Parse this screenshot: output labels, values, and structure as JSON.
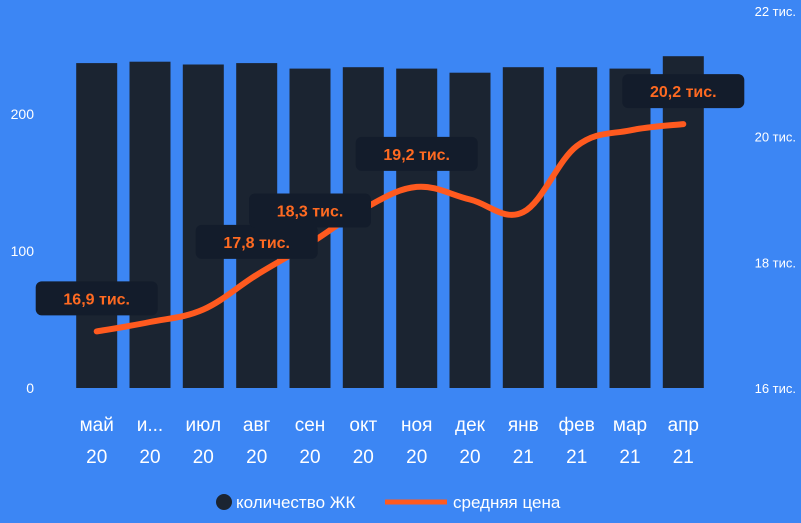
{
  "colors": {
    "background": "#3c86f4",
    "bar": "#1b2431",
    "line": "#ff5a1f",
    "label_text": "#ff6a21",
    "label_box": "#131c2b",
    "axis_text": "#ffffff"
  },
  "chart_data": {
    "type": "bar+line",
    "categories": [
      {
        "month": "май",
        "year": "20"
      },
      {
        "month": "и...",
        "year": "20"
      },
      {
        "month": "июл",
        "year": "20"
      },
      {
        "month": "авг",
        "year": "20"
      },
      {
        "month": "сен",
        "year": "20"
      },
      {
        "month": "окт",
        "year": "20"
      },
      {
        "month": "ноя",
        "year": "20"
      },
      {
        "month": "дек",
        "year": "20"
      },
      {
        "month": "янв",
        "year": "21"
      },
      {
        "month": "фев",
        "year": "21"
      },
      {
        "month": "мар",
        "year": "21"
      },
      {
        "month": "апр",
        "year": "21"
      }
    ],
    "series": [
      {
        "name": "количество ЖК",
        "type": "bar",
        "axis": "left",
        "values": [
          237,
          238,
          236,
          237,
          233,
          234,
          233,
          230,
          234,
          234,
          233,
          242
        ]
      },
      {
        "name": "средняя цена",
        "type": "line",
        "axis": "right",
        "values": [
          16900,
          17050,
          17250,
          17800,
          18300,
          18850,
          19200,
          19000,
          18800,
          19850,
          20100,
          20200
        ],
        "data_labels": [
          {
            "index": 0,
            "text": "16,9 тис."
          },
          {
            "index": 3,
            "text": "17,8 тис."
          },
          {
            "index": 4,
            "text": "18,3 тис."
          },
          {
            "index": 6,
            "text": "19,2 тис."
          },
          {
            "index": 11,
            "text": "20,2 тис."
          }
        ]
      }
    ],
    "left_axis": {
      "ylim": [
        0,
        275
      ],
      "ticks": [
        {
          "value": 0,
          "label": "0"
        },
        {
          "value": 100,
          "label": "100"
        },
        {
          "value": 200,
          "label": "200"
        }
      ]
    },
    "right_axis": {
      "ylim": [
        16000,
        22000
      ],
      "ticks": [
        {
          "value": 16000,
          "label": "16 тис."
        },
        {
          "value": 18000,
          "label": "18 тис."
        },
        {
          "value": 20000,
          "label": "20 тис."
        },
        {
          "value": 22000,
          "label": "22 тис."
        }
      ]
    },
    "grid": false,
    "legend": {
      "position": "bottom",
      "items": [
        {
          "label": "количество ЖК",
          "marker": "circle"
        },
        {
          "label": "средняя цена",
          "marker": "line"
        }
      ]
    }
  }
}
